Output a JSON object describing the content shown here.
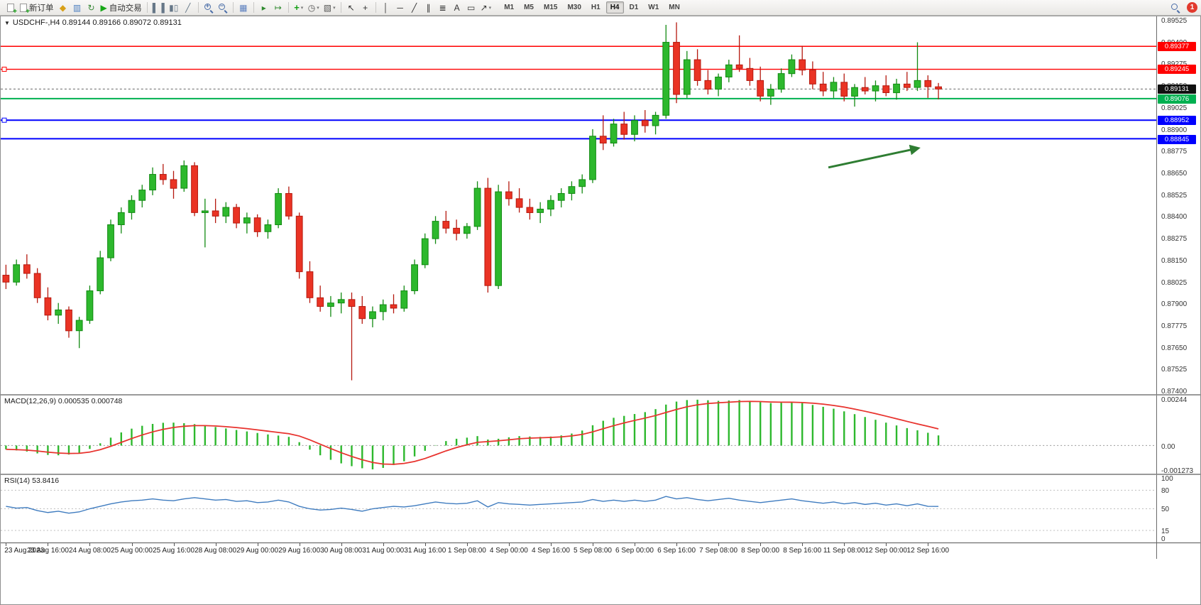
{
  "toolbar": {
    "notification_count": "1",
    "active_timeframe": "H4",
    "timeframes": [
      "M1",
      "M5",
      "M15",
      "M30",
      "H1",
      "H4",
      "D1",
      "W1",
      "MN"
    ],
    "items": [
      {
        "kind": "page",
        "name": "new-chart"
      },
      {
        "kind": "page",
        "name": "new-order",
        "label": "新订单"
      },
      {
        "kind": "glyph",
        "name": "market-watch",
        "glyph": "◆",
        "color": "#d8a018"
      },
      {
        "kind": "glyph",
        "name": "data-window",
        "glyph": "▥",
        "color": "#4a7dbf"
      },
      {
        "kind": "glyph",
        "name": "refresh",
        "glyph": "↻",
        "color": "#3a8a3a"
      },
      {
        "kind": "glyph",
        "name": "auto-trading",
        "glyph": "▶",
        "color": "#18a818",
        "label": "自动交易"
      },
      {
        "kind": "sep"
      },
      {
        "kind": "glyph",
        "name": "bar-chart",
        "glyph": "▌▐",
        "color": "#667788"
      },
      {
        "kind": "glyph",
        "name": "candlestick-chart",
        "glyph": "▮▯",
        "color": "#667788"
      },
      {
        "kind": "glyph",
        "name": "line-chart",
        "glyph": "╱",
        "color": "#667788"
      },
      {
        "kind": "sep"
      },
      {
        "kind": "mag",
        "name": "zoom-in",
        "sign": "+"
      },
      {
        "kind": "mag",
        "name": "zoom-out",
        "sign": "−"
      },
      {
        "kind": "sep"
      },
      {
        "kind": "glyph",
        "name": "tile-windows",
        "glyph": "▦",
        "color": "#5b7fbf"
      },
      {
        "kind": "sep"
      },
      {
        "kind": "glyph",
        "name": "auto-scroll",
        "glyph": "▸",
        "color": "#2e8a2e"
      },
      {
        "kind": "glyph",
        "name": "chart-shift",
        "glyph": "↦",
        "color": "#2e8a2e"
      },
      {
        "kind": "sep"
      },
      {
        "kind": "glyph",
        "name": "indicators",
        "glyph": "+",
        "color": "#14a014",
        "dropdown": true,
        "big": true
      },
      {
        "kind": "glyph",
        "name": "periods",
        "glyph": "◷",
        "color": "#555555",
        "dropdown": true
      },
      {
        "kind": "glyph",
        "name": "templates",
        "glyph": "▧",
        "color": "#555555",
        "dropdown": true
      },
      {
        "kind": "sep"
      },
      {
        "kind": "glyph",
        "name": "cursor",
        "glyph": "↖",
        "color": "#333333"
      },
      {
        "kind": "glyph",
        "name": "crosshair",
        "glyph": "+",
        "color": "#333333"
      },
      {
        "kind": "sep"
      },
      {
        "kind": "glyph",
        "name": "vertical-line",
        "glyph": "│",
        "color": "#333333"
      },
      {
        "kind": "glyph",
        "name": "horizontal-line",
        "glyph": "─",
        "color": "#333333"
      },
      {
        "kind": "glyph",
        "name": "trendline",
        "glyph": "╱",
        "color": "#333333"
      },
      {
        "kind": "glyph",
        "name": "equidistant-channel",
        "glyph": "∥",
        "color": "#333333"
      },
      {
        "kind": "glyph",
        "name": "fibonacci",
        "glyph": "≣",
        "color": "#333333"
      },
      {
        "kind": "glyph",
        "name": "text",
        "glyph": "A",
        "color": "#333333"
      },
      {
        "kind": "glyph",
        "name": "text-label",
        "glyph": "▭",
        "color": "#333333"
      },
      {
        "kind": "glyph",
        "name": "arrows",
        "glyph": "↗",
        "color": "#333333",
        "dropdown": true
      }
    ]
  },
  "chart": {
    "collapse_icon": "▼",
    "symbol_info": "USDCHF-,H4  0.89144 0.89166 0.89072 0.89131"
  },
  "chart_data": {
    "type": "candlestick",
    "symbol": "USDCHF-",
    "timeframe": "H4",
    "ohlc": {
      "open": "0.89144",
      "high": "0.89166",
      "low": "0.89072",
      "close": "0.89131"
    },
    "price_axis": {
      "max": 0.89525,
      "min": 0.874,
      "ticks": [
        "0.89525",
        "0.89400",
        "0.89275",
        "0.89150",
        "0.89025",
        "0.88900",
        "0.88775",
        "0.88650",
        "0.88525",
        "0.88400",
        "0.88275",
        "0.88150",
        "0.88025",
        "0.87900",
        "0.87775",
        "0.87650",
        "0.87525",
        "0.87400"
      ]
    },
    "levels": [
      {
        "price": 0.89377,
        "label": "0.89377",
        "color": "#ff0000",
        "style": "solid",
        "width": 1.4
      },
      {
        "price": 0.89245,
        "label": "0.89245",
        "color": "#ff0000",
        "style": "solid",
        "width": 1.4,
        "handle": true
      },
      {
        "price": 0.89131,
        "label": "0.89131",
        "color": "#000000",
        "style": "current"
      },
      {
        "price": 0.89076,
        "label": "0.89076",
        "color": "#00b050",
        "style": "solid",
        "width": 2
      },
      {
        "price": 0.88952,
        "label": "0.88952",
        "color": "#0000ff",
        "style": "solid",
        "width": 2,
        "handle": true
      },
      {
        "price": 0.88845,
        "label": "0.88845",
        "color": "#0000ff",
        "style": "solid",
        "width": 2
      }
    ],
    "colors": {
      "up_fill": "#2db82d",
      "up_stroke": "#128a12",
      "down_fill": "#ea3324",
      "down_stroke": "#b5190f"
    },
    "candles": [
      [
        0.8806,
        0.8812,
        0.8798,
        0.8802
      ],
      [
        0.8802,
        0.8815,
        0.88,
        0.8812
      ],
      [
        0.8812,
        0.8818,
        0.8804,
        0.8807
      ],
      [
        0.8807,
        0.881,
        0.879,
        0.8793
      ],
      [
        0.8793,
        0.8799,
        0.878,
        0.8783
      ],
      [
        0.8783,
        0.879,
        0.8778,
        0.8786
      ],
      [
        0.8786,
        0.8788,
        0.877,
        0.8774
      ],
      [
        0.8774,
        0.8782,
        0.8764,
        0.878
      ],
      [
        0.878,
        0.88,
        0.8778,
        0.8797
      ],
      [
        0.8797,
        0.882,
        0.8795,
        0.8816
      ],
      [
        0.8816,
        0.8838,
        0.8814,
        0.8835
      ],
      [
        0.8835,
        0.8845,
        0.883,
        0.8842
      ],
      [
        0.8842,
        0.8852,
        0.8838,
        0.8849
      ],
      [
        0.8849,
        0.8858,
        0.8845,
        0.8855
      ],
      [
        0.8855,
        0.8868,
        0.8852,
        0.8864
      ],
      [
        0.8864,
        0.887,
        0.8858,
        0.8861
      ],
      [
        0.8861,
        0.8866,
        0.885,
        0.8856
      ],
      [
        0.8856,
        0.8872,
        0.8854,
        0.8869
      ],
      [
        0.8869,
        0.8871,
        0.884,
        0.8842
      ],
      [
        0.8842,
        0.885,
        0.8822,
        0.8843
      ],
      [
        0.8843,
        0.885,
        0.8836,
        0.884
      ],
      [
        0.884,
        0.8848,
        0.8836,
        0.8845
      ],
      [
        0.8845,
        0.8847,
        0.8833,
        0.8836
      ],
      [
        0.8836,
        0.8842,
        0.883,
        0.8839
      ],
      [
        0.8839,
        0.8841,
        0.8828,
        0.8831
      ],
      [
        0.8831,
        0.8838,
        0.8827,
        0.8835
      ],
      [
        0.8835,
        0.8856,
        0.8833,
        0.8853
      ],
      [
        0.8853,
        0.8857,
        0.8838,
        0.884
      ],
      [
        0.884,
        0.8842,
        0.8804,
        0.8808
      ],
      [
        0.8808,
        0.8814,
        0.879,
        0.8793
      ],
      [
        0.8793,
        0.88,
        0.8785,
        0.8788
      ],
      [
        0.8788,
        0.8794,
        0.8782,
        0.879
      ],
      [
        0.879,
        0.8796,
        0.8784,
        0.8792
      ],
      [
        0.8792,
        0.8796,
        0.87455,
        0.8788
      ],
      [
        0.8788,
        0.8794,
        0.8778,
        0.8781
      ],
      [
        0.8781,
        0.8788,
        0.8776,
        0.8785
      ],
      [
        0.8785,
        0.8792,
        0.878,
        0.8789
      ],
      [
        0.8789,
        0.8795,
        0.8784,
        0.8787
      ],
      [
        0.8787,
        0.88,
        0.8785,
        0.8797
      ],
      [
        0.8797,
        0.8815,
        0.8795,
        0.8812
      ],
      [
        0.8812,
        0.883,
        0.881,
        0.8827
      ],
      [
        0.8827,
        0.884,
        0.8824,
        0.8837
      ],
      [
        0.8837,
        0.8843,
        0.883,
        0.8833
      ],
      [
        0.8833,
        0.8838,
        0.8826,
        0.883
      ],
      [
        0.883,
        0.8836,
        0.8827,
        0.8834
      ],
      [
        0.8834,
        0.886,
        0.8832,
        0.8856
      ],
      [
        0.8856,
        0.8862,
        0.8796,
        0.88
      ],
      [
        0.88,
        0.8858,
        0.8798,
        0.8854
      ],
      [
        0.8854,
        0.886,
        0.8846,
        0.885
      ],
      [
        0.885,
        0.8856,
        0.8842,
        0.8845
      ],
      [
        0.8845,
        0.885,
        0.8838,
        0.8842
      ],
      [
        0.8842,
        0.8848,
        0.8836,
        0.8844
      ],
      [
        0.8844,
        0.8852,
        0.884,
        0.8849
      ],
      [
        0.8849,
        0.8856,
        0.8845,
        0.8853
      ],
      [
        0.8853,
        0.886,
        0.8849,
        0.8857
      ],
      [
        0.8857,
        0.8864,
        0.8853,
        0.8861
      ],
      [
        0.8861,
        0.889,
        0.8859,
        0.8886
      ],
      [
        0.8886,
        0.8898,
        0.8878,
        0.8882
      ],
      [
        0.8882,
        0.8896,
        0.888,
        0.8893
      ],
      [
        0.8893,
        0.89,
        0.8884,
        0.8887
      ],
      [
        0.8887,
        0.8898,
        0.8883,
        0.8895
      ],
      [
        0.8895,
        0.8901,
        0.8888,
        0.8892
      ],
      [
        0.8892,
        0.89,
        0.8887,
        0.8898
      ],
      [
        0.8898,
        0.895,
        0.8896,
        0.894
      ],
      [
        0.894,
        0.89515,
        0.8905,
        0.891
      ],
      [
        0.891,
        0.8935,
        0.8908,
        0.893
      ],
      [
        0.893,
        0.8936,
        0.8915,
        0.8918
      ],
      [
        0.8918,
        0.8924,
        0.891,
        0.8913
      ],
      [
        0.8913,
        0.8922,
        0.8909,
        0.892
      ],
      [
        0.892,
        0.893,
        0.8917,
        0.8927
      ],
      [
        0.8927,
        0.8944,
        0.8923,
        0.8925
      ],
      [
        0.8925,
        0.8931,
        0.8915,
        0.8918
      ],
      [
        0.8918,
        0.8926,
        0.8906,
        0.8909
      ],
      [
        0.8909,
        0.8916,
        0.8904,
        0.8913
      ],
      [
        0.8913,
        0.8925,
        0.8911,
        0.8922
      ],
      [
        0.8922,
        0.8933,
        0.892,
        0.893
      ],
      [
        0.893,
        0.8938,
        0.8921,
        0.8924
      ],
      [
        0.8924,
        0.8929,
        0.8913,
        0.8916
      ],
      [
        0.8916,
        0.8923,
        0.8909,
        0.8912
      ],
      [
        0.8912,
        0.892,
        0.8908,
        0.8917
      ],
      [
        0.8917,
        0.8922,
        0.8906,
        0.8909
      ],
      [
        0.8909,
        0.8916,
        0.8903,
        0.8914
      ],
      [
        0.8914,
        0.892,
        0.891,
        0.8912
      ],
      [
        0.8912,
        0.8918,
        0.8906,
        0.8915
      ],
      [
        0.8915,
        0.8921,
        0.8909,
        0.8911
      ],
      [
        0.8911,
        0.8919,
        0.8907,
        0.8916
      ],
      [
        0.8916,
        0.8923,
        0.8912,
        0.8914
      ],
      [
        0.8914,
        0.894,
        0.8912,
        0.8918
      ],
      [
        0.8918,
        0.8921,
        0.8908,
        0.89144
      ],
      [
        0.89144,
        0.89166,
        0.89072,
        0.89131
      ]
    ],
    "label_every": 4,
    "time_labels": [
      "23 Aug 2023",
      "23 Aug 16:00",
      "24 Aug 08:00",
      "25 Aug 00:00",
      "25 Aug 16:00",
      "28 Aug 08:00",
      "29 Aug 00:00",
      "29 Aug 16:00",
      "30 Aug 08:00",
      "31 Aug 00:00",
      "31 Aug 16:00",
      "1 Sep 08:00",
      "4 Sep 00:00",
      "4 Sep 16:00",
      "5 Sep 08:00",
      "6 Sep 00:00",
      "6 Sep 16:00",
      "7 Sep 08:00",
      "8 Sep 00:00",
      "8 Sep 16:00",
      "11 Sep 08:00",
      "12 Sep 00:00",
      "12 Sep 16:00"
    ],
    "trend_arrow": {
      "from_candle": 78.5,
      "from_price": 0.8868,
      "to_candle": 87.0,
      "to_price": 0.8879,
      "color": "#2e7d32"
    },
    "macd": {
      "title": "MACD(12,26,9)",
      "values_text": "0.000535 0.000748",
      "max": 0.00244,
      "min": -0.001273,
      "axis_labels": [
        "0.00244",
        "0.00",
        "-0.001273"
      ],
      "histogram_color": "#2db82d",
      "signal_color": "#e8332e",
      "histogram": [
        -0.0002,
        -0.00026,
        -0.00032,
        -0.00042,
        -0.0005,
        -0.00052,
        -0.00048,
        -0.0004,
        -0.00018,
        0.00012,
        0.00042,
        0.0007,
        0.0009,
        0.00105,
        0.00115,
        0.00121,
        0.00122,
        0.00119,
        0.00114,
        0.00107,
        0.00099,
        0.00091,
        0.00083,
        0.00075,
        0.00067,
        0.00059,
        0.00053,
        0.00046,
        0.00018,
        -0.00022,
        -0.00052,
        -0.00076,
        -0.00095,
        -0.0011,
        -0.00121,
        -0.00127,
        -0.00119,
        -0.00104,
        -0.00084,
        -0.00058,
        -0.00028,
        2e-05,
        0.00024,
        0.00036,
        0.00042,
        0.0005,
        0.00032,
        0.00036,
        0.00044,
        0.0005,
        0.00048,
        0.00046,
        0.00048,
        0.00054,
        0.00064,
        0.0008,
        0.00108,
        0.00132,
        0.00148,
        0.00158,
        0.00168,
        0.00178,
        0.00194,
        0.00218,
        0.00234,
        0.00242,
        0.00244,
        0.00241,
        0.00238,
        0.0024,
        0.00242,
        0.00238,
        0.00231,
        0.00226,
        0.00228,
        0.0023,
        0.00226,
        0.00216,
        0.00206,
        0.00196,
        0.00182,
        0.00167,
        0.00152,
        0.00137,
        0.00122,
        0.00107,
        0.00093,
        0.00081,
        0.00068,
        0.00054
      ]
    },
    "rsi": {
      "title": "RSI(14)",
      "value_text": "53.8416",
      "axis_labels": [
        "100",
        "80",
        "50",
        "15",
        "0"
      ],
      "level_lines": [
        80,
        50,
        15
      ],
      "line_color": "#3e7bbf",
      "values": [
        54,
        51,
        52,
        47,
        44,
        46,
        43,
        45,
        50,
        54,
        58,
        61,
        63,
        64,
        66,
        64,
        63,
        66,
        68,
        66,
        64,
        65,
        62,
        63,
        60,
        61,
        64,
        61,
        54,
        50,
        48,
        49,
        51,
        49,
        46,
        50,
        52,
        54,
        53,
        55,
        58,
        61,
        59,
        58,
        59,
        63,
        53,
        60,
        58,
        57,
        56,
        57,
        58,
        59,
        60,
        61,
        65,
        62,
        64,
        62,
        64,
        62,
        64,
        70,
        66,
        68,
        65,
        63,
        65,
        67,
        64,
        62,
        60,
        62,
        64,
        66,
        63,
        61,
        59,
        61,
        58,
        60,
        57,
        59,
        56,
        58,
        55,
        58,
        54,
        53.84
      ]
    }
  }
}
